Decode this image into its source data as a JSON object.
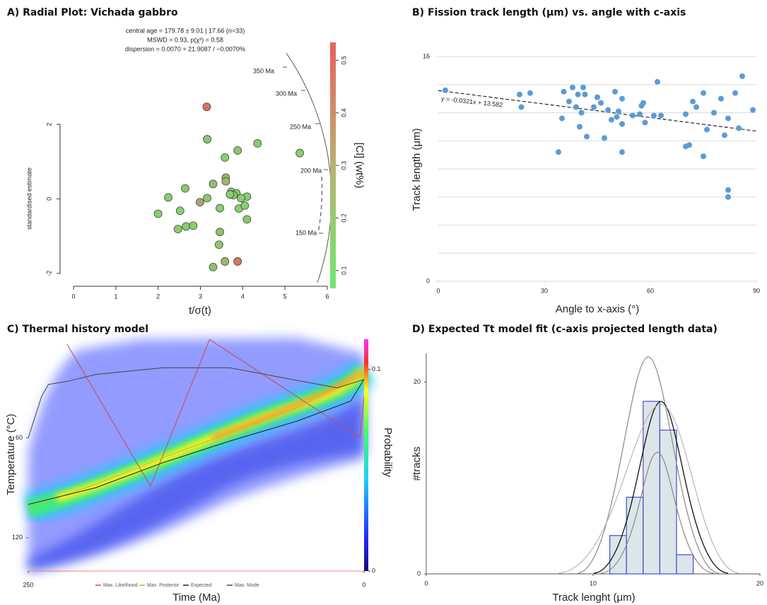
{
  "chart_data": [
    {
      "type": "radial",
      "title": "A) Radial Plot: Vichada gabbro",
      "annotations": [
        "central age = 179.78 ± 9.01 | 17.66  (n=33)",
        "MSWD = 0.93, p(χ²) = 0.58",
        "dispersion = 0.0070 + 21.9087 / −0.0070%"
      ],
      "xlabel": "t/σ(t)",
      "ylabel": "standardised estimate",
      "xlim": [
        0,
        6
      ],
      "xticks": [
        0,
        1,
        2,
        3,
        4,
        5,
        6
      ],
      "ylim": [
        -2.25,
        4.2
      ],
      "yticks": [
        -2,
        0,
        2
      ],
      "x": [
        3.15,
        3.16,
        3.58,
        3.88,
        4.35,
        5.35,
        3.6,
        3.6,
        3.3,
        2.64,
        2.24,
        3.16,
        2.99,
        3.73,
        3.85,
        4.1,
        3.96,
        3.78,
        2.52,
        3.46,
        2.0,
        3.91,
        4.05,
        2.47,
        2.66,
        2.83,
        4.1,
        3.46,
        3.44,
        3.58,
        3.3,
        3.88,
        3.7
      ],
      "y": [
        2.47,
        1.6,
        1.11,
        1.3,
        1.49,
        1.23,
        0.57,
        0.47,
        0.4,
        0.28,
        0.04,
        0.02,
        -0.09,
        0.19,
        0.15,
        0.06,
        0.02,
        0.1,
        -0.32,
        -0.25,
        -0.4,
        -0.26,
        -0.18,
        -0.81,
        -0.74,
        -0.72,
        -0.55,
        -0.89,
        -1.23,
        -1.68,
        -1.83,
        -1.68,
        0.12
      ],
      "color_values": [
        0.46,
        0.17,
        0.15,
        0.2,
        0.16,
        0.14,
        0.24,
        0.23,
        0.2,
        0.18,
        0.15,
        0.17,
        0.3,
        0.2,
        0.16,
        0.14,
        0.16,
        0.18,
        0.13,
        0.14,
        0.13,
        0.15,
        0.14,
        0.16,
        0.16,
        0.15,
        0.18,
        0.2,
        0.17,
        0.22,
        0.2,
        0.45,
        0.15
      ],
      "colorbar": {
        "label": "[Cl] (wt%)",
        "lim": [
          0.066,
          0.534
        ],
        "ticks": [
          0.1,
          0.2,
          0.3,
          0.4,
          0.5
        ],
        "colors": [
          "#6fe86f",
          "#e86060"
        ]
      },
      "arc_labels": [
        "350 Ma",
        "300 Ma",
        "250 Ma",
        "200 Ma",
        "150 Ma"
      ]
    },
    {
      "type": "scatter",
      "title": "B) Fission track length (μm) vs. angle with c-axis",
      "xlabel": "Angle to x-axis (°)",
      "ylabel": "Track length (μm)",
      "xlim": [
        0,
        90
      ],
      "xticks": [
        0,
        30,
        60,
        90
      ],
      "ylim": [
        0,
        16
      ],
      "yticks": [
        0,
        16
      ],
      "ygrid": [
        2,
        4,
        6,
        8,
        10,
        12,
        14,
        16
      ],
      "color": "#5b9bd5",
      "x": [
        2,
        23,
        23.5,
        26,
        34,
        35,
        35.5,
        37,
        38,
        39,
        39.5,
        40,
        40.5,
        41,
        41.5,
        42,
        44,
        45,
        46,
        47,
        48,
        49,
        50,
        50.5,
        51,
        52,
        52,
        52,
        55,
        57,
        57.5,
        58,
        58.5,
        61,
        62,
        63,
        70,
        70,
        71,
        72,
        73,
        75,
        75,
        76,
        78,
        80,
        81,
        82,
        82,
        82,
        84,
        85,
        86,
        89
      ],
      "y": [
        13.6,
        13.3,
        12.4,
        13.4,
        9.2,
        11.6,
        13.5,
        12.8,
        13.8,
        12.4,
        13.3,
        11.0,
        12.0,
        13.8,
        13.3,
        10.3,
        12.4,
        13.1,
        12.7,
        10.2,
        12.2,
        11.5,
        13.5,
        11.7,
        12.1,
        13.0,
        11.2,
        9.2,
        11.8,
        11.9,
        12.5,
        12.7,
        11.3,
        11.8,
        14.2,
        11.8,
        11.9,
        9.6,
        9.7,
        12.8,
        12.4,
        13.4,
        8.9,
        10.8,
        12.0,
        13.0,
        10.4,
        11.6,
        6.5,
        6.0,
        13.4,
        10.9,
        14.6,
        12.2
      ],
      "trendline": {
        "slope": -0.0321,
        "intercept": 13.582,
        "label": "y = -0.0321x + 13.582",
        "color": "#333333"
      }
    },
    {
      "type": "thermal",
      "title": "C) Thermal history model",
      "xlabel": "Time (Ma)",
      "ylabel": "Temperature (°C)",
      "xlim": [
        250,
        0
      ],
      "xticks": [
        250,
        0
      ],
      "ylim": [
        0,
        140
      ],
      "yticks": [
        60,
        120
      ],
      "yaxis_inverted": true,
      "colorbar": {
        "label": "Probability",
        "lim": [
          0,
          0.115
        ],
        "ticks": [
          0,
          0.1
        ]
      },
      "series": [
        {
          "name": "Max. Likelihood",
          "color": "#c0504d",
          "x": [
            221,
            159,
            115,
            3,
            0
          ],
          "values": [
            4,
            89,
            1,
            60,
            35
          ]
        },
        {
          "name": "Max. Posterior",
          "color": "#b5c23a",
          "x": [
            250,
            200,
            150,
            100,
            50,
            0
          ],
          "values": [
            102,
            88,
            72,
            57,
            42,
            22
          ]
        },
        {
          "name": "Expected",
          "color": "#222222",
          "x": [
            250,
            200,
            150,
            100,
            50,
            10,
            0
          ],
          "values": [
            100,
            90,
            75,
            62,
            50,
            38,
            25
          ]
        },
        {
          "name": "Max. Mode",
          "color": "#444444",
          "x": [
            250,
            240,
            235,
            220,
            200,
            150,
            100,
            60,
            20,
            0
          ],
          "values": [
            60,
            35,
            28,
            26,
            22,
            18,
            18,
            24,
            30,
            25
          ]
        }
      ]
    },
    {
      "type": "histogram",
      "title": "D) Expected Tt model fit (c-axis projected length data)",
      "xlabel": "Track lenght (μm)",
      "ylabel": "#tracks",
      "xlim": [
        0,
        20
      ],
      "xticks": [
        0,
        10,
        20
      ],
      "ylim": [
        0,
        23
      ],
      "yticks": [
        0,
        20
      ],
      "bins": [
        11,
        12,
        13,
        14,
        15,
        16
      ],
      "counts": [
        4,
        8,
        18,
        15,
        2
      ],
      "color": "#d3e2e4",
      "outline": "#4a4acf"
    }
  ]
}
